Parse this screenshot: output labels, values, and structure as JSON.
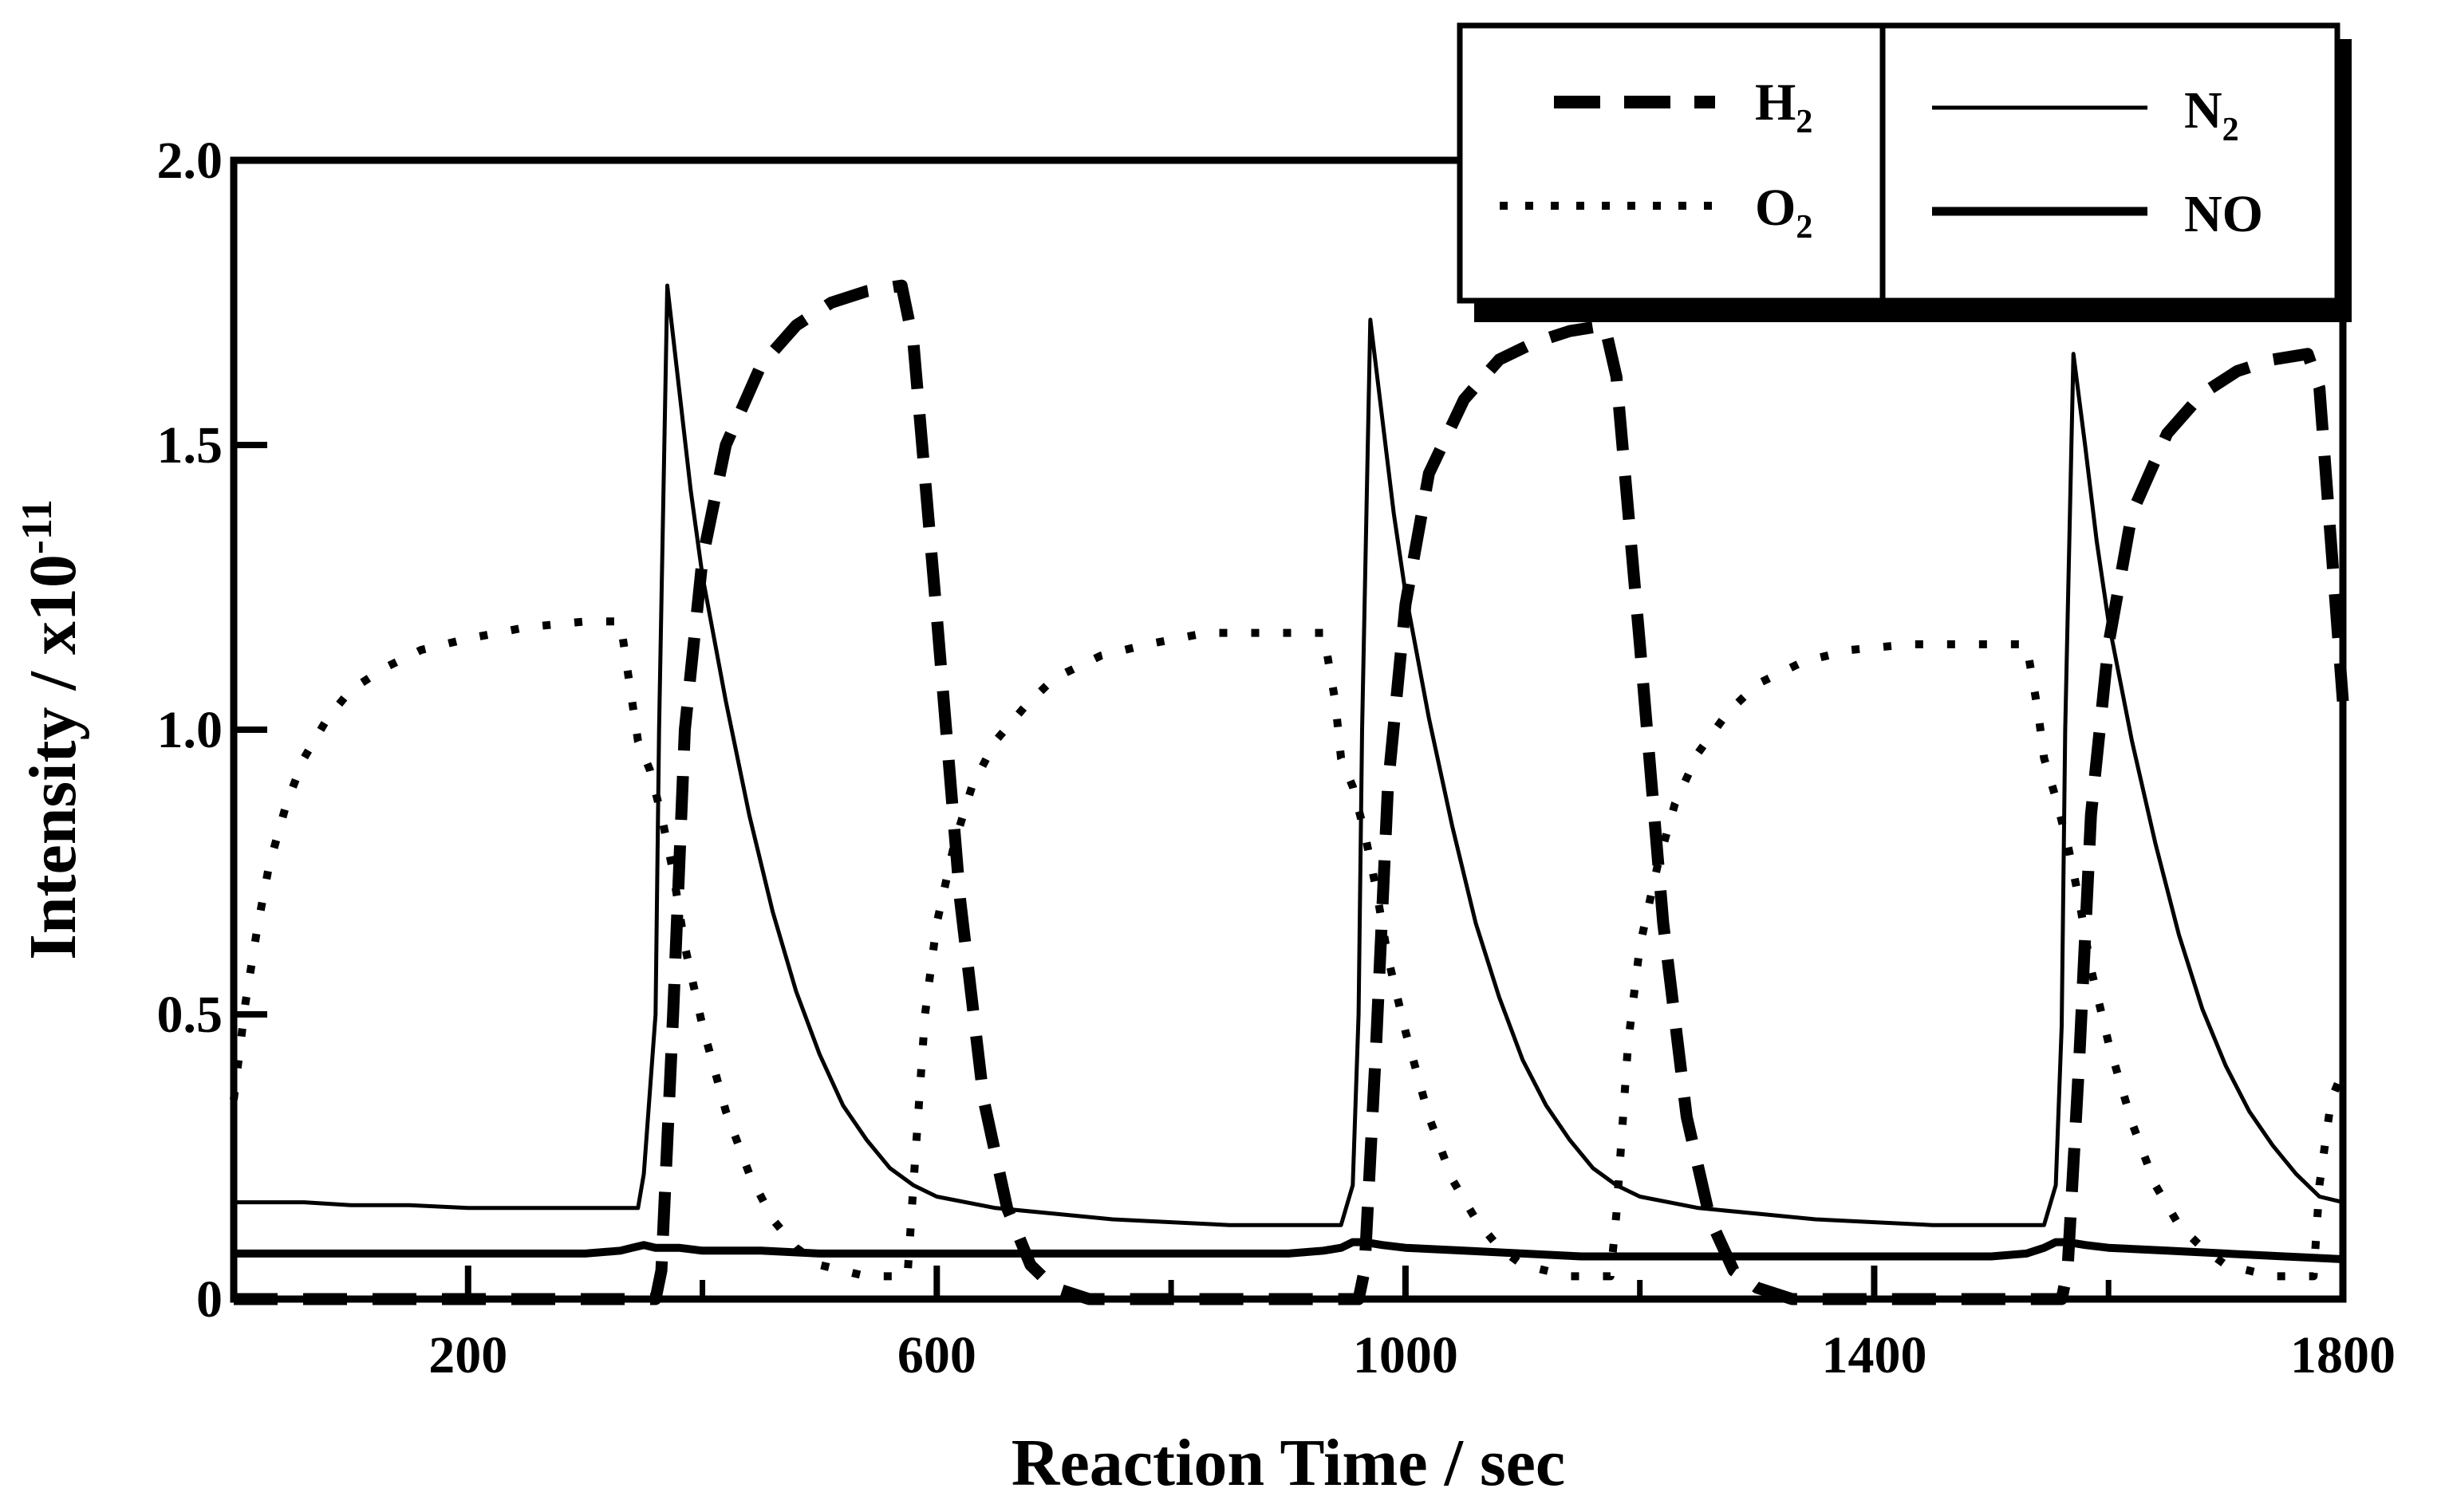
{
  "chart_data": {
    "type": "line",
    "title": "",
    "xlabel": "Reaction Time / sec",
    "ylabel": "Intensity / x10",
    "ylabel_exponent": "-11",
    "xlim": [
      0,
      1800
    ],
    "ylim": [
      0,
      2.0
    ],
    "xticks": [
      200,
      600,
      1000,
      1400,
      1800
    ],
    "xtick_labels": [
      "200",
      "600",
      "1000",
      "1400",
      "1800"
    ],
    "xticks_minor": [
      400,
      800,
      1200,
      1600
    ],
    "yticks": [
      0,
      0.5,
      1.0,
      1.5,
      2.0
    ],
    "ytick_labels": [
      "0",
      "0.5",
      "1.0",
      "1.5",
      "2.0"
    ],
    "grid": false,
    "legend_position": "top-right",
    "legend": [
      {
        "name": "H",
        "sub": "2",
        "style": "dashed"
      },
      {
        "name": "O",
        "sub": "2",
        "style": "dotted"
      },
      {
        "name": "N",
        "sub": "2",
        "style": "thin"
      },
      {
        "name": "NO",
        "sub": "",
        "style": "thick"
      }
    ],
    "series": [
      {
        "name": "H2",
        "style": "dashed",
        "x": [
          0,
          360,
          365,
          375,
          385,
          400,
          420,
          450,
          480,
          510,
          540,
          570,
          580,
          600,
          620,
          640,
          660,
          680,
          700,
          730,
          760,
          960,
          965,
          975,
          985,
          1000,
          1020,
          1050,
          1080,
          1110,
          1140,
          1170,
          1180,
          1200,
          1220,
          1240,
          1260,
          1280,
          1300,
          1330,
          1360,
          1560,
          1565,
          1575,
          1585,
          1600,
          1620,
          1650,
          1680,
          1710,
          1740,
          1770,
          1780,
          1800
        ],
        "values": [
          0,
          0,
          0.05,
          0.5,
          1.0,
          1.3,
          1.5,
          1.64,
          1.71,
          1.75,
          1.77,
          1.78,
          1.68,
          1.2,
          0.7,
          0.35,
          0.16,
          0.06,
          0.02,
          0,
          0,
          0,
          0.05,
          0.45,
          0.9,
          1.22,
          1.45,
          1.58,
          1.65,
          1.68,
          1.7,
          1.71,
          1.62,
          1.15,
          0.66,
          0.32,
          0.14,
          0.05,
          0.02,
          0,
          0,
          0,
          0.05,
          0.42,
          0.85,
          1.15,
          1.38,
          1.52,
          1.59,
          1.63,
          1.65,
          1.66,
          1.6,
          1.05
        ]
      },
      {
        "name": "O2",
        "style": "dotted",
        "x": [
          0,
          10,
          20,
          30,
          45,
          60,
          80,
          100,
          130,
          160,
          200,
          250,
          300,
          330,
          340,
          345,
          355,
          365,
          375,
          385,
          400,
          420,
          440,
          460,
          480,
          500,
          520,
          540,
          560,
          575,
          580,
          590,
          600,
          615,
          630,
          650,
          675,
          700,
          740,
          780,
          830,
          880,
          930,
          940,
          945,
          955,
          965,
          975,
          985,
          1000,
          1020,
          1040,
          1060,
          1080,
          1100,
          1120,
          1140,
          1160,
          1175,
          1180,
          1190,
          1200,
          1215,
          1230,
          1250,
          1275,
          1300,
          1340,
          1380,
          1430,
          1480,
          1530,
          1540,
          1545,
          1555,
          1565,
          1575,
          1585,
          1600,
          1620,
          1640,
          1660,
          1680,
          1700,
          1720,
          1740,
          1760,
          1775,
          1780,
          1790,
          1800
        ],
        "values": [
          0.35,
          0.52,
          0.65,
          0.76,
          0.87,
          0.95,
          1.02,
          1.07,
          1.11,
          1.14,
          1.16,
          1.18,
          1.19,
          1.19,
          1.05,
          0.98,
          0.93,
          0.85,
          0.75,
          0.62,
          0.48,
          0.33,
          0.22,
          0.14,
          0.09,
          0.06,
          0.05,
          0.04,
          0.04,
          0.04,
          0.2,
          0.5,
          0.66,
          0.8,
          0.9,
          0.98,
          1.04,
          1.09,
          1.13,
          1.15,
          1.17,
          1.17,
          1.17,
          1.05,
          0.95,
          0.9,
          0.82,
          0.72,
          0.6,
          0.47,
          0.32,
          0.21,
          0.14,
          0.09,
          0.06,
          0.05,
          0.04,
          0.04,
          0.04,
          0.15,
          0.45,
          0.62,
          0.76,
          0.87,
          0.96,
          1.03,
          1.08,
          1.12,
          1.14,
          1.15,
          1.15,
          1.15,
          1.03,
          0.95,
          0.88,
          0.8,
          0.7,
          0.58,
          0.45,
          0.31,
          0.2,
          0.13,
          0.09,
          0.06,
          0.05,
          0.04,
          0.04,
          0.04,
          0.2,
          0.35,
          0.4
        ]
      },
      {
        "name": "N2",
        "style": "thin",
        "x": [
          0,
          20,
          60,
          100,
          150,
          200,
          250,
          300,
          330,
          345,
          350,
          360,
          363,
          370,
          380,
          390,
          400,
          420,
          440,
          460,
          480,
          500,
          520,
          540,
          560,
          580,
          600,
          650,
          700,
          750,
          800,
          850,
          900,
          930,
          945,
          955,
          960,
          963,
          970,
          980,
          990,
          1000,
          1020,
          1040,
          1060,
          1080,
          1100,
          1120,
          1140,
          1160,
          1180,
          1200,
          1250,
          1300,
          1350,
          1400,
          1450,
          1500,
          1530,
          1545,
          1555,
          1560,
          1563,
          1570,
          1580,
          1590,
          1600,
          1620,
          1640,
          1660,
          1680,
          1700,
          1720,
          1740,
          1760,
          1780,
          1800
        ],
        "values": [
          0.17,
          0.17,
          0.17,
          0.165,
          0.165,
          0.16,
          0.16,
          0.16,
          0.16,
          0.16,
          0.22,
          0.5,
          1.0,
          1.78,
          1.6,
          1.42,
          1.27,
          1.05,
          0.85,
          0.68,
          0.54,
          0.43,
          0.34,
          0.28,
          0.23,
          0.2,
          0.18,
          0.16,
          0.15,
          0.14,
          0.135,
          0.13,
          0.13,
          0.13,
          0.13,
          0.2,
          0.5,
          1.0,
          1.72,
          1.55,
          1.38,
          1.24,
          1.02,
          0.83,
          0.66,
          0.53,
          0.42,
          0.34,
          0.28,
          0.23,
          0.2,
          0.18,
          0.16,
          0.15,
          0.14,
          0.135,
          0.13,
          0.13,
          0.13,
          0.13,
          0.2,
          0.48,
          1.0,
          1.66,
          1.5,
          1.33,
          1.19,
          0.98,
          0.8,
          0.64,
          0.51,
          0.41,
          0.33,
          0.27,
          0.22,
          0.18,
          0.17
        ]
      },
      {
        "name": "NO",
        "style": "thick",
        "x": [
          0,
          100,
          200,
          300,
          330,
          340,
          350,
          360,
          380,
          400,
          450,
          500,
          550,
          600,
          700,
          800,
          900,
          930,
          945,
          955,
          965,
          980,
          1000,
          1050,
          1100,
          1150,
          1200,
          1300,
          1400,
          1500,
          1530,
          1545,
          1555,
          1565,
          1580,
          1600,
          1650,
          1700,
          1750,
          1800
        ],
        "values": [
          0.08,
          0.08,
          0.08,
          0.08,
          0.085,
          0.09,
          0.095,
          0.09,
          0.09,
          0.085,
          0.085,
          0.08,
          0.08,
          0.08,
          0.08,
          0.08,
          0.08,
          0.085,
          0.09,
          0.1,
          0.1,
          0.095,
          0.09,
          0.085,
          0.08,
          0.075,
          0.075,
          0.075,
          0.075,
          0.075,
          0.08,
          0.09,
          0.1,
          0.1,
          0.095,
          0.09,
          0.085,
          0.08,
          0.075,
          0.07
        ]
      }
    ]
  }
}
